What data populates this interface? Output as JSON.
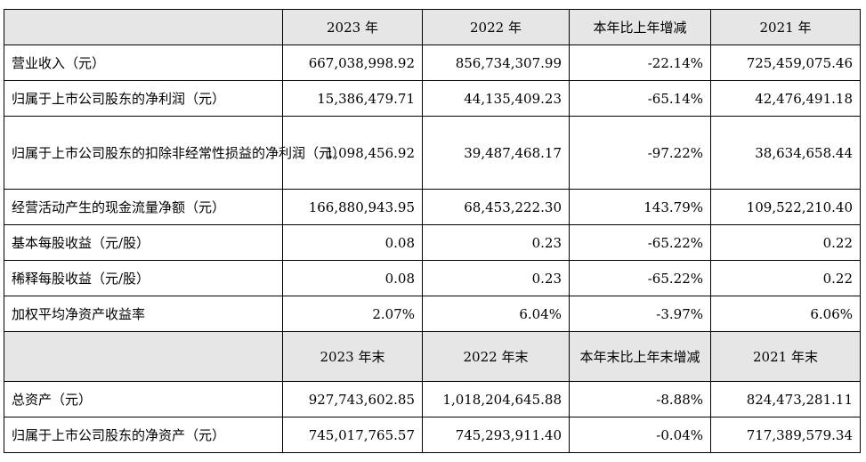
{
  "header1": {
    "blank": "",
    "col1": "2023 年",
    "col2": "2022 年",
    "col3": "本年比上年增减",
    "col4": "2021 年"
  },
  "rows1": [
    {
      "label": "营业收入（元）",
      "v2023": "667,038,998.92",
      "v2022": "856,734,307.99",
      "change": "-22.14%",
      "v2021": "725,459,075.46"
    },
    {
      "label": "归属于上市公司股东的净利润（元）",
      "v2023": "15,386,479.71",
      "v2022": "44,135,409.23",
      "change": "-65.14%",
      "v2021": "42,476,491.18"
    },
    {
      "label": "归属于上市公司股东的扣除非经常性损益的净利润（元）",
      "v2023": "1,098,456.92",
      "v2022": "39,487,468.17",
      "change": "-97.22%",
      "v2021": "38,634,658.44"
    },
    {
      "label": "经营活动产生的现金流量净额（元）",
      "v2023": "166,880,943.95",
      "v2022": "68,453,222.30",
      "change": "143.79%",
      "v2021": "109,522,210.40"
    },
    {
      "label": "基本每股收益（元/股）",
      "v2023": "0.08",
      "v2022": "0.23",
      "change": "-65.22%",
      "v2021": "0.22"
    },
    {
      "label": "稀释每股收益（元/股）",
      "v2023": "0.08",
      "v2022": "0.23",
      "change": "-65.22%",
      "v2021": "0.22"
    },
    {
      "label": "加权平均净资产收益率",
      "v2023": "2.07%",
      "v2022": "6.04%",
      "change": "-3.97%",
      "v2021": "6.06%"
    }
  ],
  "header2": {
    "blank": "",
    "col1": "2023 年末",
    "col2": "2022 年末",
    "col3": "本年末比上年末增减",
    "col4": "2021 年末"
  },
  "rows2": [
    {
      "label": "总资产（元）",
      "v2023": "927,743,602.85",
      "v2022": "1,018,204,645.88",
      "change": "-8.88%",
      "v2021": "824,473,281.11"
    },
    {
      "label": "归属于上市公司股东的净资产（元）",
      "v2023": "745,017,765.57",
      "v2022": "745,293,911.40",
      "change": "-0.04%",
      "v2021": "717,389,579.34"
    }
  ]
}
